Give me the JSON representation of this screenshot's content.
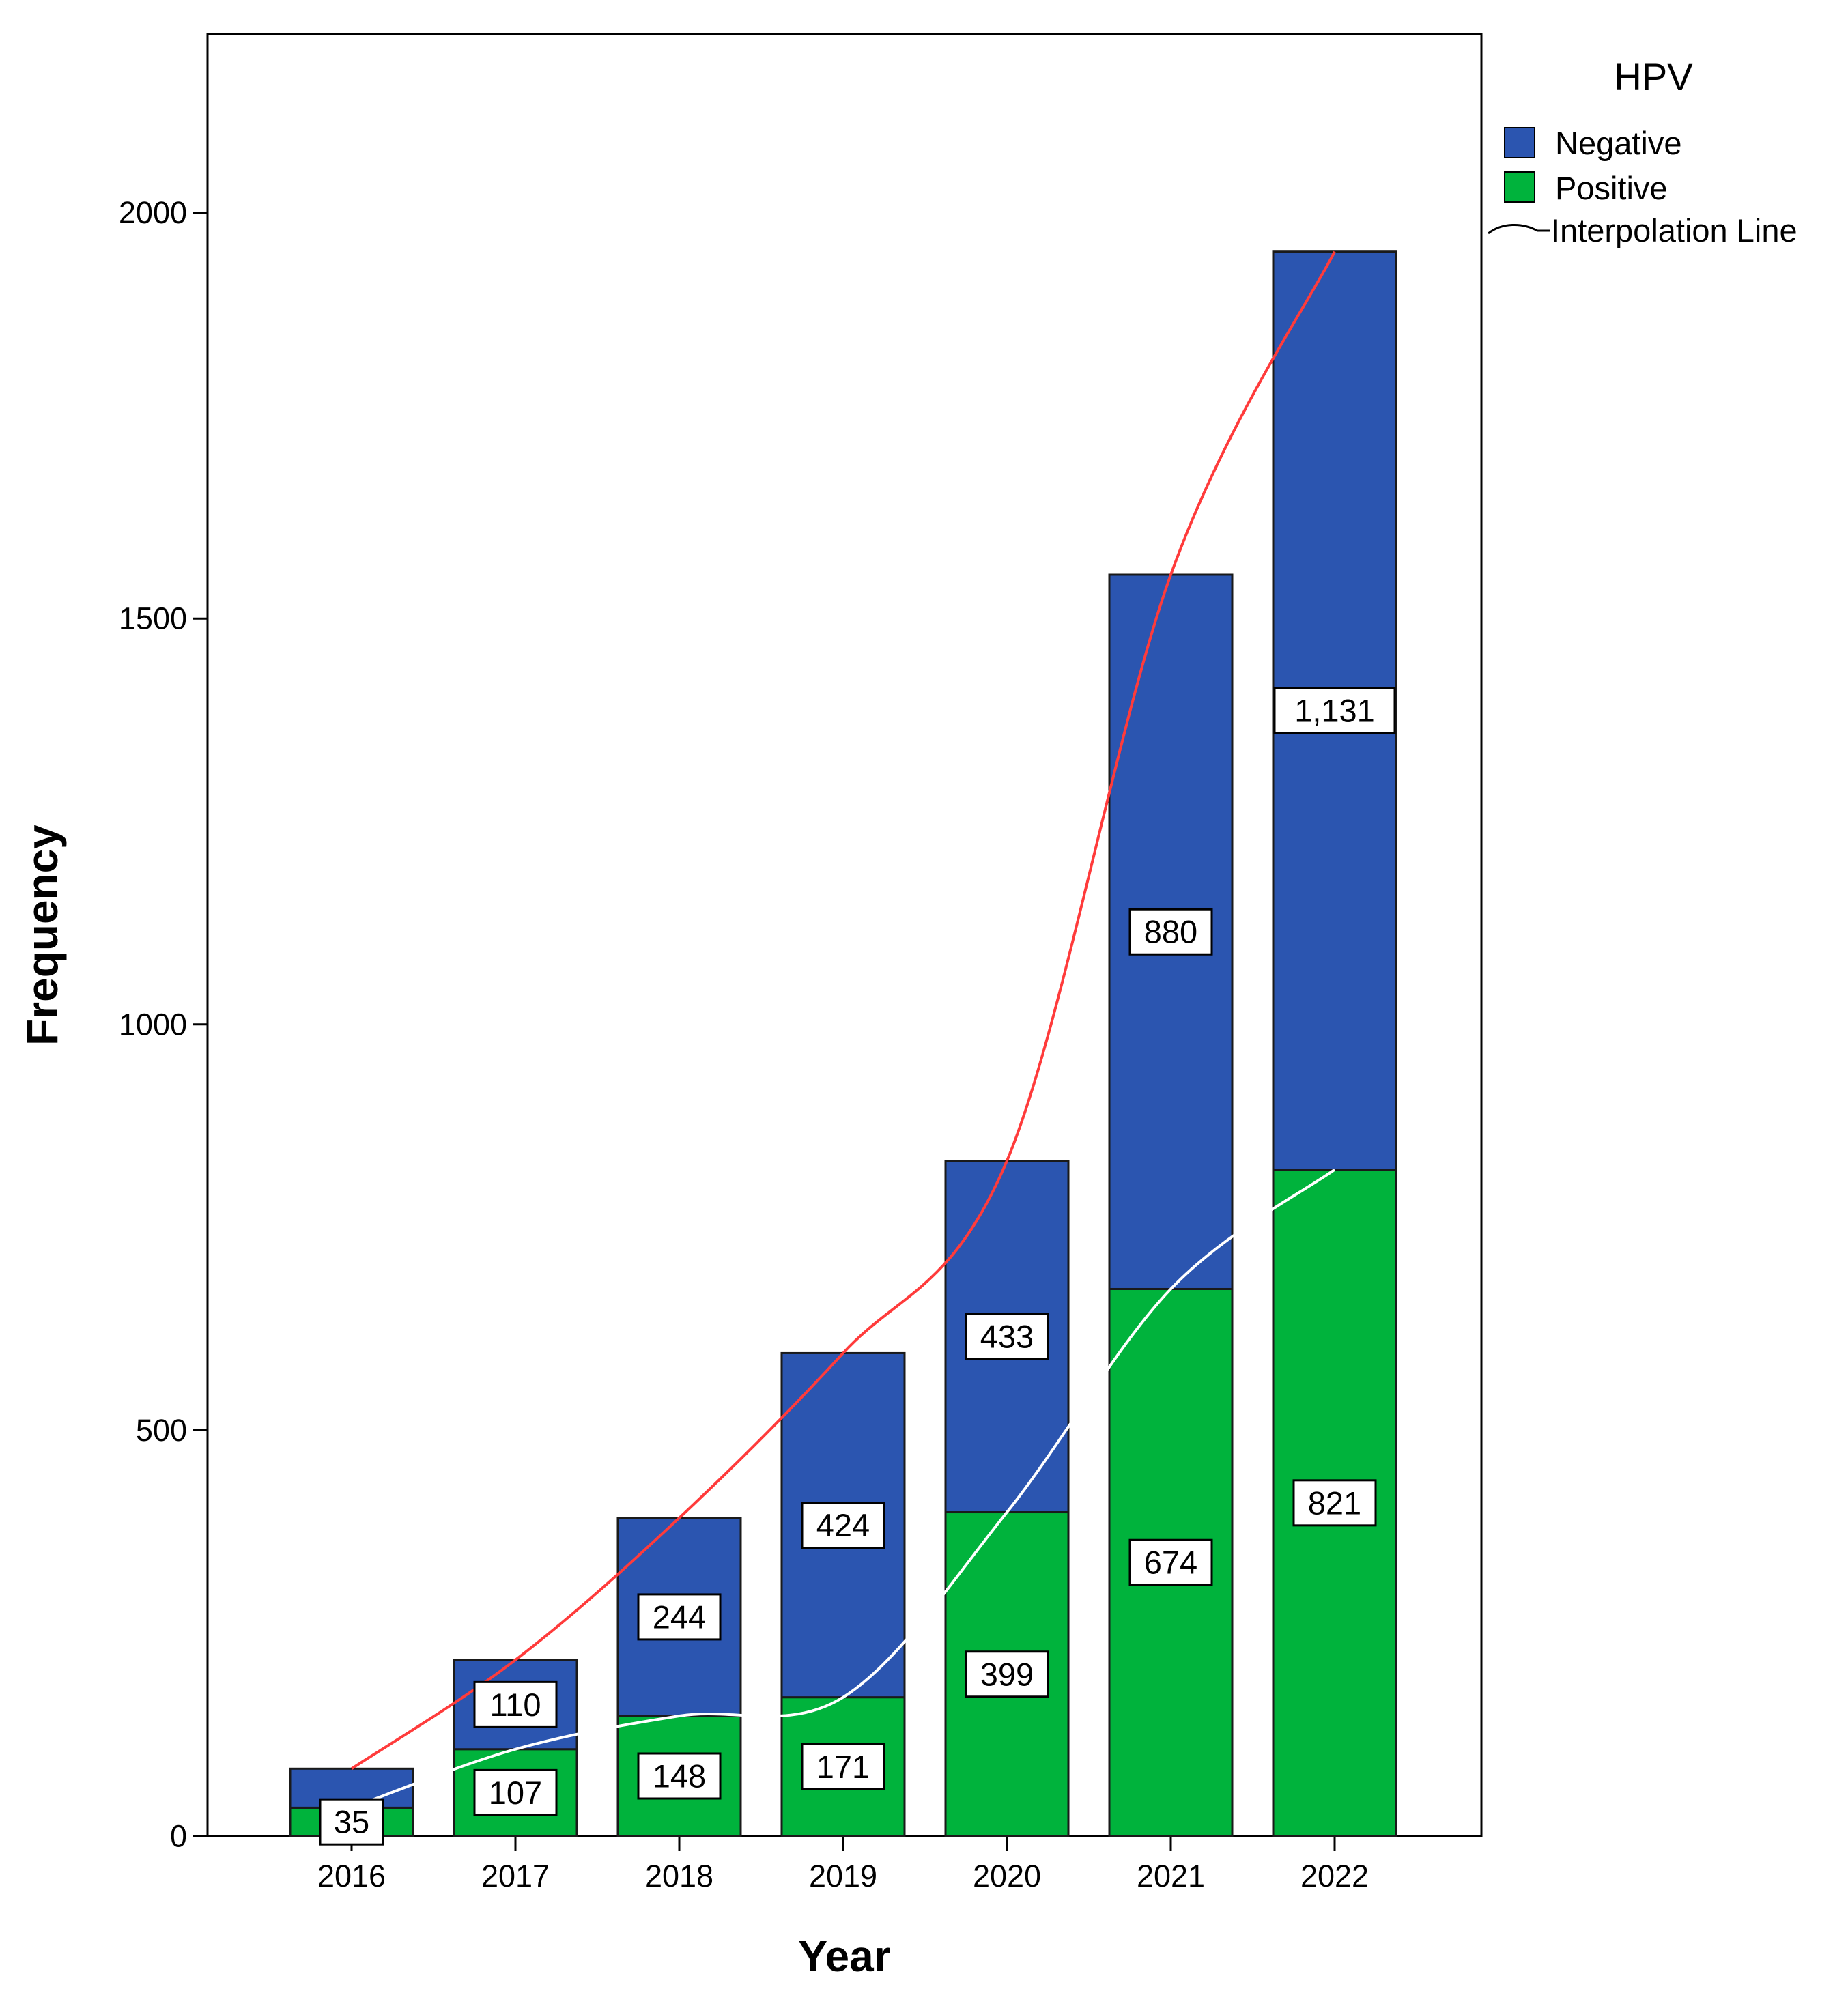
{
  "chart_data": {
    "type": "bar",
    "stacked": true,
    "categories": [
      "2016",
      "2017",
      "2018",
      "2019",
      "2020",
      "2021",
      "2022"
    ],
    "series": [
      {
        "name": "Positive",
        "color": "#00b33c",
        "values": [
          35,
          107,
          148,
          171,
          399,
          674,
          821
        ],
        "labels": [
          "35",
          "107",
          "148",
          "171",
          "399",
          "674",
          "821"
        ]
      },
      {
        "name": "Negative",
        "color": "#2b55b0",
        "values": [
          48,
          110,
          244,
          424,
          433,
          880,
          1131
        ],
        "labels": [
          "",
          "110",
          "244",
          "424",
          "433",
          "880",
          "1,131"
        ]
      }
    ],
    "interpolation_lines": [
      {
        "color": "#ff3b3b",
        "values": [
          83,
          217,
          392,
          595,
          832,
          1554,
          1952
        ]
      },
      {
        "color": "#ffffff",
        "values": [
          35,
          107,
          148,
          171,
          399,
          674,
          821
        ]
      }
    ],
    "xlabel": "Year",
    "ylabel": "Frequency",
    "ylim": [
      0,
      2220
    ],
    "yticks": [
      0,
      500,
      1000,
      1500,
      2000
    ],
    "ytick_labels": [
      "0",
      "500",
      "1000",
      "1500",
      "2000"
    ],
    "legend": {
      "title": "HPV",
      "position": "top-right-outside",
      "entries": [
        {
          "label": "Negative",
          "color": "#2b55b0",
          "kind": "box"
        },
        {
          "label": "Positive",
          "color": "#00b33c",
          "kind": "box"
        },
        {
          "label": "Interpolation Line",
          "kind": "line"
        }
      ]
    },
    "grid": false
  }
}
